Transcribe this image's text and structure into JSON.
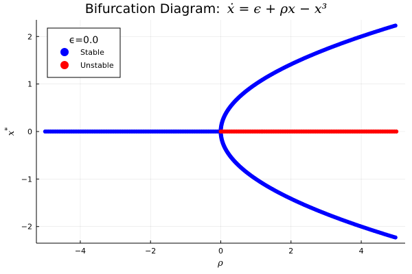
{
  "chart_data": {
    "type": "scatter",
    "title_prefix": "Bifurcation Diagram:",
    "title_equation": "ẋ = ϵ + ρx − x³",
    "xlabel": "ρ",
    "ylabel": "x*",
    "xlim": [
      -5.25,
      5.25
    ],
    "ylim": [
      -2.35,
      2.35
    ],
    "xticks": [
      -4,
      -2,
      0,
      2,
      4
    ],
    "xtick_labels": [
      "−4",
      "−2",
      "0",
      "2",
      "4"
    ],
    "yticks": [
      -2,
      -1,
      0,
      1,
      2
    ],
    "ytick_labels": [
      "−2",
      "−1",
      "0",
      "1",
      "2"
    ],
    "grid": true,
    "legend_position": "top-left",
    "legend_title": "ϵ=0.0",
    "epsilon": 0.0,
    "rho_range": [
      -5,
      5
    ],
    "series": [
      {
        "name": "Stable",
        "color": "#0000ff",
        "points": [
          [
            -5,
            0
          ],
          [
            -4,
            0
          ],
          [
            -3,
            0
          ],
          [
            -2,
            0
          ],
          [
            -1,
            0
          ],
          [
            0,
            0
          ],
          [
            0.02,
            0.141
          ],
          [
            0.1,
            0.316
          ],
          [
            0.25,
            0.5
          ],
          [
            0.5,
            0.707
          ],
          [
            1,
            1
          ],
          [
            1.5,
            1.225
          ],
          [
            2,
            1.414
          ],
          [
            2.5,
            1.581
          ],
          [
            3,
            1.732
          ],
          [
            3.5,
            1.871
          ],
          [
            4,
            2
          ],
          [
            4.5,
            2.121
          ],
          [
            5,
            2.236
          ],
          [
            0.02,
            -0.141
          ],
          [
            0.1,
            -0.316
          ],
          [
            0.25,
            -0.5
          ],
          [
            0.5,
            -0.707
          ],
          [
            1,
            -1
          ],
          [
            1.5,
            -1.225
          ],
          [
            2,
            -1.414
          ],
          [
            2.5,
            -1.581
          ],
          [
            3,
            -1.732
          ],
          [
            3.5,
            -1.871
          ],
          [
            4,
            -2
          ],
          [
            4.5,
            -2.121
          ],
          [
            5,
            -2.236
          ]
        ]
      },
      {
        "name": "Unstable",
        "color": "#ff0000",
        "points": [
          [
            0,
            0
          ],
          [
            1,
            0
          ],
          [
            2,
            0
          ],
          [
            3,
            0
          ],
          [
            4,
            0
          ],
          [
            5,
            0
          ]
        ]
      }
    ]
  }
}
